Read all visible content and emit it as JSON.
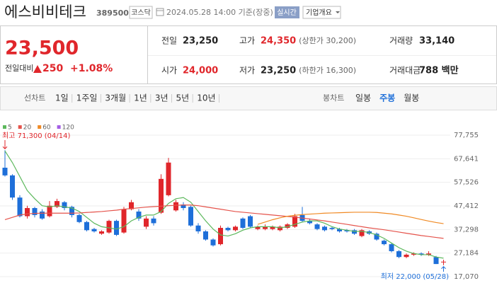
{
  "header": {
    "title": "에스비비테크",
    "code": "389500",
    "market": "코스닥",
    "datetime": "2024.05.28 14:00 기준(장중)",
    "realtime": "실시간",
    "company_info": "기업개요"
  },
  "summary": {
    "price": "23,500",
    "change_label": "전일대비",
    "change": "250",
    "change_rate": "+1.08%",
    "stats": [
      [
        {
          "label": "전일",
          "value": "23,250"
        },
        {
          "label": "고가",
          "value": "24,350",
          "sub": "(상한가 30,200)",
          "color": "#e0262b"
        },
        {
          "label": "거래량",
          "value": "33,140"
        }
      ],
      [
        {
          "label": "시가",
          "value": "24,000",
          "color": "#e0262b"
        },
        {
          "label": "저가",
          "value": "23,250",
          "sub": "(하한가 16,300)"
        },
        {
          "label": "거래대금",
          "value": "788 백만"
        }
      ]
    ]
  },
  "tabs": {
    "line_label": "선차트",
    "periods": [
      "1일",
      "1주일",
      "3개월",
      "1년",
      "3년",
      "5년",
      "10년"
    ],
    "candle_label": "봉차트",
    "candle_periods": [
      "일봉",
      "주봉",
      "월봉"
    ],
    "selected": "주봉"
  },
  "chart_data": {
    "type": "candlestick",
    "up_color": "#e0262b",
    "down_color": "#1e6fd9",
    "grid": true,
    "open": [
      63800,
      60500,
      51000,
      43000,
      46500,
      45000,
      43000,
      47000,
      49000,
      47000,
      43500,
      40500,
      37500,
      35500,
      36000,
      41000,
      36000,
      46000,
      45000,
      38500,
      42000,
      44500,
      52000,
      45500,
      48000,
      47000,
      39000,
      36500,
      33000,
      31000,
      38000,
      37000,
      42000,
      43000,
      37500,
      37500,
      37500,
      37000,
      38000,
      38500,
      43500,
      41000,
      39500,
      38500,
      38000,
      37500,
      37000,
      37000,
      34500,
      36500,
      35500,
      32500,
      31000,
      28000,
      25500,
      26500,
      27000,
      26500,
      25500,
      23250
    ],
    "close": [
      60500,
      51000,
      43000,
      46500,
      43500,
      42000,
      47500,
      49500,
      46500,
      43500,
      40500,
      37000,
      36500,
      36500,
      41000,
      35000,
      46000,
      49000,
      42000,
      42000,
      40000,
      59000,
      66000,
      49000,
      46500,
      39000,
      36500,
      33000,
      30500,
      38000,
      37000,
      38500,
      38000,
      38500,
      38500,
      38500,
      38500,
      38500,
      39500,
      43000,
      41000,
      40000,
      37500,
      37000,
      37500,
      36500,
      36500,
      35500,
      37000,
      35500,
      33000,
      31000,
      28000,
      25500,
      26500,
      27000,
      26500,
      27000,
      22500,
      23500
    ],
    "high": [
      71300,
      61000,
      52000,
      47500,
      47000,
      46000,
      49500,
      50500,
      49500,
      47500,
      44000,
      41000,
      38000,
      37000,
      41500,
      41500,
      47000,
      50000,
      46000,
      43000,
      43000,
      61000,
      68000,
      50000,
      49000,
      47500,
      40000,
      37000,
      33500,
      39000,
      38500,
      39000,
      42500,
      43500,
      39000,
      39500,
      39000,
      39000,
      40000,
      44000,
      47000,
      42000,
      40000,
      39000,
      38500,
      38000,
      37500,
      37500,
      37500,
      37000,
      36000,
      33000,
      31500,
      28500,
      27000,
      27500,
      27500,
      28000,
      26000,
      24350
    ],
    "low": [
      60000,
      50000,
      42500,
      42000,
      42500,
      41500,
      42500,
      46500,
      45500,
      42500,
      40000,
      36500,
      36000,
      35000,
      35500,
      34500,
      35500,
      45500,
      41000,
      37500,
      39000,
      44000,
      51500,
      45000,
      45500,
      38500,
      35500,
      32500,
      30000,
      30500,
      36500,
      36500,
      37500,
      38000,
      37000,
      37000,
      37000,
      36500,
      37500,
      38000,
      40500,
      39500,
      37000,
      36500,
      37000,
      36000,
      36000,
      35000,
      34000,
      35000,
      32500,
      30500,
      27500,
      25000,
      25000,
      26000,
      26000,
      26000,
      22500,
      22000
    ],
    "series": [
      {
        "name": "5",
        "color": "#5cb85c",
        "values": [
          71000,
          66000,
          60000,
          54000,
          50500,
          47500,
          47000,
          47500,
          47000,
          46500,
          45000,
          42500,
          40000,
          38500,
          38000,
          37500,
          38500,
          41000,
          42500,
          43500,
          43500,
          45000,
          48500,
          50500,
          51000,
          49000,
          45000,
          41000,
          37500,
          35000,
          34500,
          35500,
          37000,
          38000,
          38500,
          38500,
          38500,
          38000,
          38500,
          39500,
          40500,
          41000,
          41000,
          40000,
          38500,
          37500,
          37000,
          36500,
          36500,
          36000,
          35000,
          33500,
          31500,
          29500,
          28000,
          27000,
          26500,
          26500,
          25500,
          25000
        ]
      },
      {
        "name": "20",
        "color": "#e5534b",
        "values": [
          41500,
          42500,
          43500,
          44000,
          44200,
          44300,
          44300,
          44300,
          44300,
          44300,
          44400,
          44600,
          44800,
          45000,
          45300,
          45600,
          46000,
          46300,
          46600,
          46900,
          47100,
          47300,
          47500,
          47700,
          47800,
          47800,
          47500,
          47000,
          46500,
          46000,
          45500,
          45000,
          44700,
          44400,
          44100,
          43800,
          43500,
          43200,
          42900,
          42600,
          42200,
          41800,
          41400,
          41000,
          40500,
          40000,
          39500,
          39000,
          38500,
          38000,
          37600,
          37200,
          36700,
          36200,
          35700,
          35200,
          34700,
          34300,
          33900,
          33500
        ]
      },
      {
        "name": "60",
        "color": "#f08a24",
        "values": [
          null,
          null,
          null,
          null,
          null,
          null,
          null,
          null,
          null,
          null,
          null,
          null,
          null,
          null,
          null,
          null,
          null,
          null,
          null,
          null,
          null,
          null,
          null,
          null,
          null,
          null,
          null,
          null,
          null,
          null,
          null,
          null,
          null,
          null,
          39500,
          40500,
          41500,
          42300,
          43000,
          43400,
          43700,
          43900,
          44100,
          44300,
          44400,
          44500,
          44600,
          44700,
          44700,
          44700,
          44600,
          44300,
          44000,
          43500,
          43000,
          42300,
          41600,
          40900,
          40300,
          39800
        ]
      },
      {
        "name": "120",
        "color": "#a45ee5"
      }
    ],
    "ylim": [
      17070,
      77755
    ],
    "yticks": [
      {
        "value": 77755,
        "label": "77,755"
      },
      {
        "value": 67641,
        "label": "67,641"
      },
      {
        "value": 57526,
        "label": "57,526"
      },
      {
        "value": 47412,
        "label": "47,412"
      },
      {
        "value": 37298,
        "label": "37,298"
      },
      {
        "value": 27184,
        "label": "27,184"
      },
      {
        "value": 17070,
        "label": "17,070"
      }
    ],
    "high_annotation": "최고 71,300 (04/14)",
    "low_annotation": "최저 22,000 (05/28)"
  }
}
